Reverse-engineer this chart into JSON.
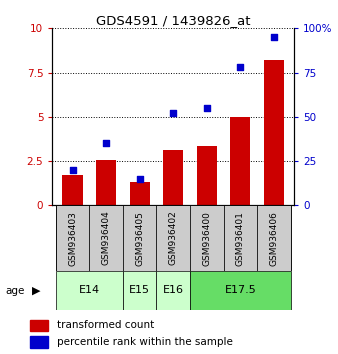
{
  "title": "GDS4591 / 1439826_at",
  "samples": [
    "GSM936403",
    "GSM936404",
    "GSM936405",
    "GSM936402",
    "GSM936400",
    "GSM936401",
    "GSM936406"
  ],
  "transformed_count": [
    1.7,
    2.55,
    1.3,
    3.1,
    3.35,
    5.0,
    8.2
  ],
  "percentile_rank": [
    20,
    35,
    15,
    52,
    55,
    78,
    95
  ],
  "ylim_left": [
    0,
    10
  ],
  "ylim_right": [
    0,
    100
  ],
  "yticks_left": [
    0,
    2.5,
    5,
    7.5,
    10
  ],
  "ytick_labels_left": [
    "0",
    "2.5",
    "5",
    "7.5",
    "10"
  ],
  "yticks_right": [
    0,
    25,
    50,
    75,
    100
  ],
  "ytick_labels_right": [
    "0",
    "25",
    "50",
    "75",
    "100%"
  ],
  "bar_color": "#cc0000",
  "dot_color": "#0000cc",
  "age_groups": [
    {
      "label": "E14",
      "start": 0,
      "end": 1,
      "color": "#ccffcc"
    },
    {
      "label": "E15",
      "start": 2,
      "end": 2,
      "color": "#ccffcc"
    },
    {
      "label": "E16",
      "start": 3,
      "end": 3,
      "color": "#ccffcc"
    },
    {
      "label": "E17.5",
      "start": 4,
      "end": 6,
      "color": "#66dd66"
    }
  ],
  "sample_box_color": "#cccccc",
  "left_tick_color": "#cc0000",
  "right_tick_color": "#0000cc",
  "dot_size": 20
}
